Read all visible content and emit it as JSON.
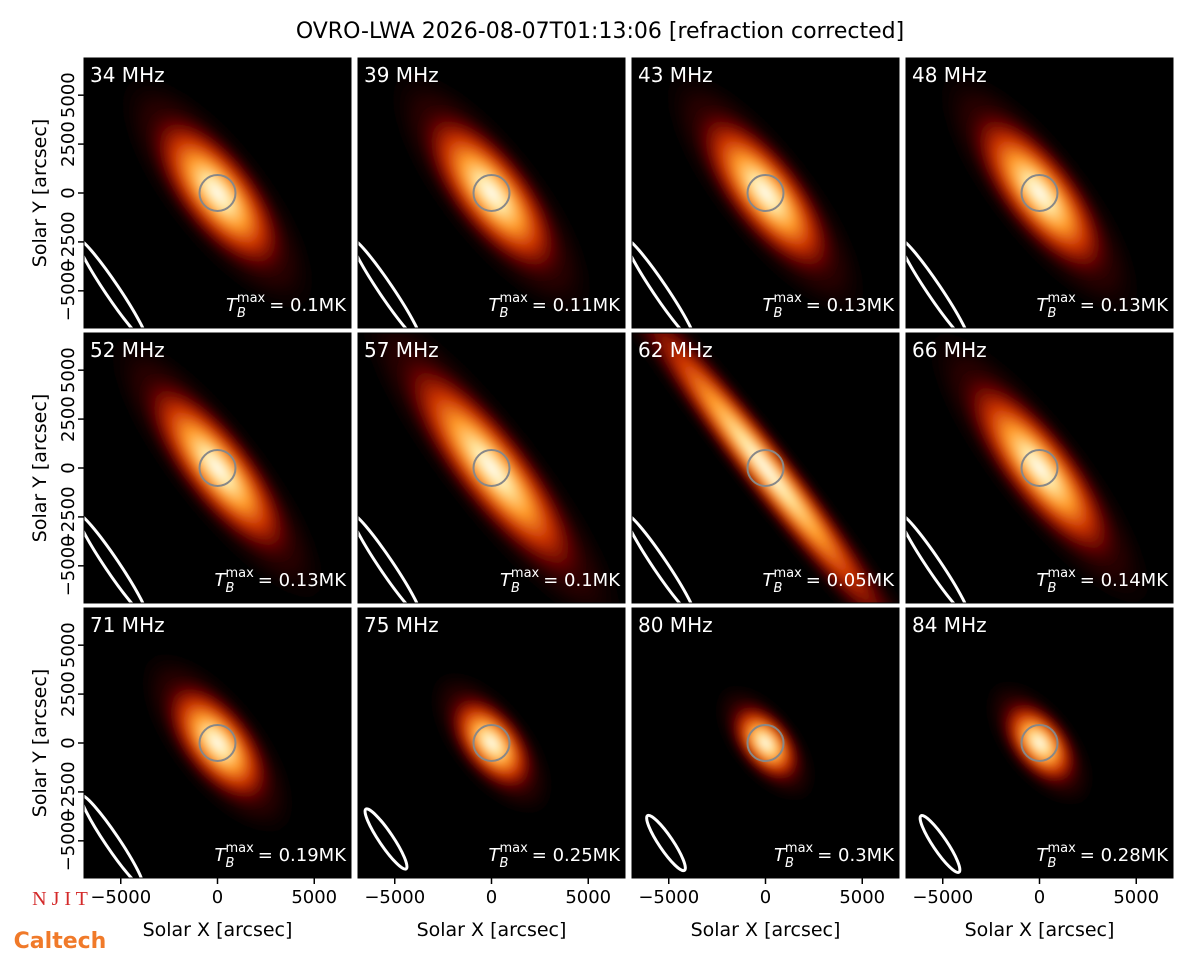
{
  "chart_data": {
    "type": "image-grid",
    "title": "OVRO-LWA 2026-08-07T01:13:06 [refraction corrected]",
    "xlabel": "Solar X [arcsec]",
    "ylabel": "Solar Y [arcsec]",
    "xlim": [
      -6900,
      6900
    ],
    "ylim": [
      -6900,
      6900
    ],
    "xticks": [
      {
        "value": -5000,
        "label": "−5000"
      },
      0,
      5000
    ],
    "yticks": [
      {
        "value": -5000,
        "label": "−5000"
      },
      {
        "value": -2500,
        "label": "−2500"
      },
      0,
      2500,
      5000
    ],
    "tmax_symbol": {
      "base": "T",
      "sub": "B",
      "sup": "max"
    },
    "panels": [
      {
        "label": "34 MHz",
        "tmax": "= 0.1MK"
      },
      {
        "label": "39 MHz",
        "tmax": "= 0.11MK"
      },
      {
        "label": "43 MHz",
        "tmax": "= 0.13MK"
      },
      {
        "label": "48 MHz",
        "tmax": "= 0.13MK"
      },
      {
        "label": "52 MHz",
        "tmax": "= 0.13MK"
      },
      {
        "label": "57 MHz",
        "tmax": "= 0.1MK"
      },
      {
        "label": "62 MHz",
        "tmax": "= 0.05MK"
      },
      {
        "label": "66 MHz",
        "tmax": "= 0.14MK"
      },
      {
        "label": "71 MHz",
        "tmax": "= 0.19MK"
      },
      {
        "label": "75 MHz",
        "tmax": "= 0.25MK"
      },
      {
        "label": "80 MHz",
        "tmax": "= 0.3MK"
      },
      {
        "label": "84 MHz",
        "tmax": "= 0.28MK"
      }
    ]
  },
  "logos": {
    "top": "N J I T",
    "bottom": "Caltech"
  }
}
